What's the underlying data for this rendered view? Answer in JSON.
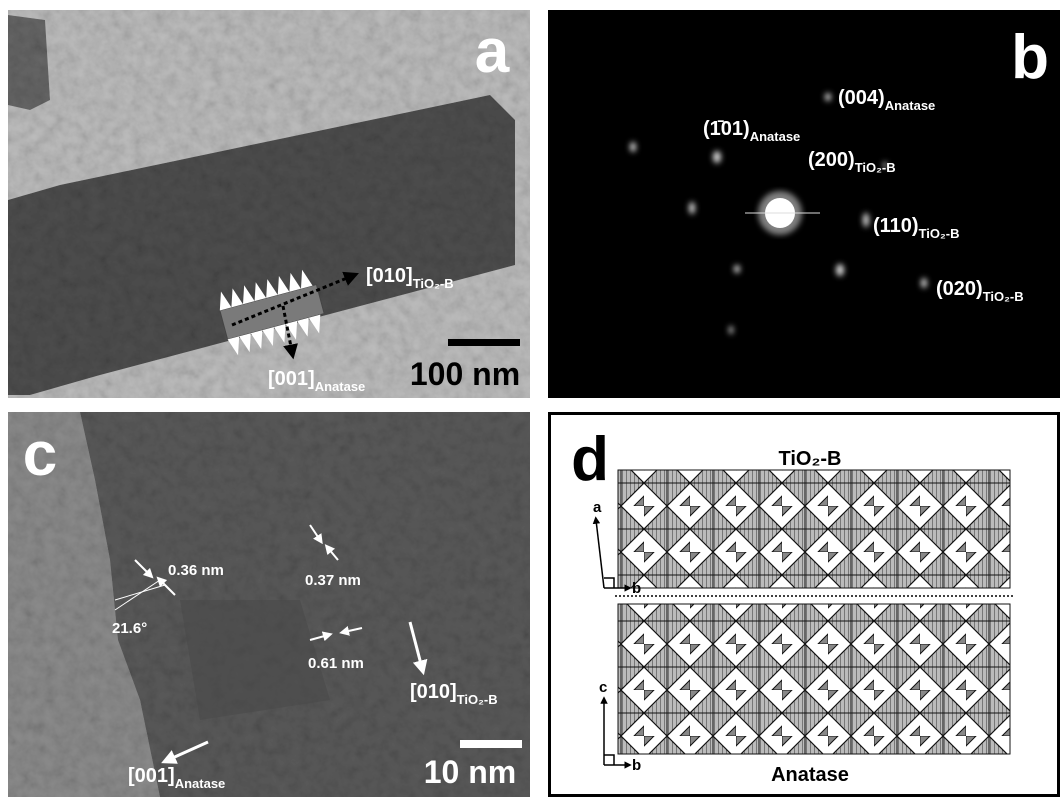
{
  "panels": [
    {
      "label": "a",
      "annotations": [
        {
          "text": "[010]",
          "sub": "TiO₂-B"
        },
        {
          "text": "[001]",
          "sub": "Anatase"
        }
      ],
      "scale_bar": "100 nm"
    },
    {
      "label": "b",
      "annotations": [
        {
          "text": "(004)",
          "sub": "Anatase"
        },
        {
          "text": "(1̄01)",
          "sub": "Anatase"
        },
        {
          "text": "(200)",
          "sub": "TiO₂-B"
        },
        {
          "text": "(110)",
          "sub": "TiO₂-B"
        },
        {
          "text": "(020)",
          "sub": "TiO₂-B"
        }
      ]
    },
    {
      "label": "c",
      "annotations": [
        {
          "text": "0.36 nm"
        },
        {
          "text": "21.6°"
        },
        {
          "text": "0.37 nm"
        },
        {
          "text": "0.61 nm"
        },
        {
          "text": "[010]",
          "sub": "TiO₂-B"
        },
        {
          "text": "[001]",
          "sub": "Anatase"
        }
      ],
      "scale_bar": "10 nm"
    },
    {
      "label": "d",
      "top_label": "TiO₂-B",
      "bottom_label": "Anatase",
      "axes_top": [
        "a",
        "b"
      ],
      "axes_bottom": [
        "c",
        "b"
      ]
    }
  ]
}
